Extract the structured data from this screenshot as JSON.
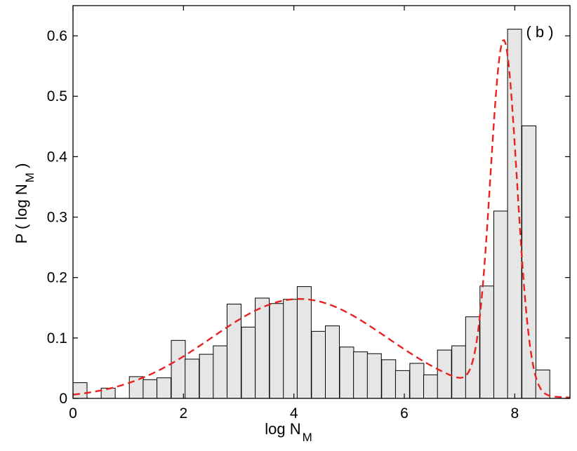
{
  "chart_data": {
    "type": "bar",
    "panel_label": "( b )",
    "xlabel": {
      "main": "log N",
      "sub": "M"
    },
    "ylabel": {
      "prefix": "P ( log N",
      "sub": "M",
      "suffix": " )"
    },
    "xlim": [
      0,
      9
    ],
    "ylim": [
      0,
      0.65
    ],
    "xticks": [
      0,
      2,
      4,
      6,
      8
    ],
    "xtick_labels": [
      "0",
      "2",
      "4",
      "6",
      "8"
    ],
    "yticks": [
      0,
      0.1,
      0.2,
      0.3,
      0.4,
      0.5,
      0.6
    ],
    "ytick_labels": [
      "0",
      "0.1",
      "0.2",
      "0.3",
      "0.4",
      "0.5",
      "0.6"
    ],
    "grid": false,
    "bin_width": 0.254,
    "bins": [
      {
        "x0": 0.0,
        "value": 0.026
      },
      {
        "x0": 0.51,
        "value": 0.017
      },
      {
        "x0": 1.02,
        "value": 0.036
      },
      {
        "x0": 1.27,
        "value": 0.031
      },
      {
        "x0": 1.52,
        "value": 0.034
      },
      {
        "x0": 1.78,
        "value": 0.096
      },
      {
        "x0": 2.03,
        "value": 0.065
      },
      {
        "x0": 2.29,
        "value": 0.073
      },
      {
        "x0": 2.54,
        "value": 0.087
      },
      {
        "x0": 2.79,
        "value": 0.156
      },
      {
        "x0": 3.05,
        "value": 0.118
      },
      {
        "x0": 3.3,
        "value": 0.166
      },
      {
        "x0": 3.56,
        "value": 0.157
      },
      {
        "x0": 3.81,
        "value": 0.164
      },
      {
        "x0": 4.06,
        "value": 0.185
      },
      {
        "x0": 4.32,
        "value": 0.111
      },
      {
        "x0": 4.57,
        "value": 0.12
      },
      {
        "x0": 4.83,
        "value": 0.085
      },
      {
        "x0": 5.08,
        "value": 0.077
      },
      {
        "x0": 5.33,
        "value": 0.074
      },
      {
        "x0": 5.59,
        "value": 0.064
      },
      {
        "x0": 5.84,
        "value": 0.046
      },
      {
        "x0": 6.1,
        "value": 0.058
      },
      {
        "x0": 6.35,
        "value": 0.039
      },
      {
        "x0": 6.6,
        "value": 0.08
      },
      {
        "x0": 6.86,
        "value": 0.087
      },
      {
        "x0": 7.11,
        "value": 0.135
      },
      {
        "x0": 7.37,
        "value": 0.186
      },
      {
        "x0": 7.62,
        "value": 0.31
      },
      {
        "x0": 7.87,
        "value": 0.611
      },
      {
        "x0": 8.13,
        "value": 0.451
      },
      {
        "x0": 8.38,
        "value": 0.047
      }
    ],
    "fit_curve": {
      "style": "dashed",
      "color": "#e8231f",
      "components": [
        {
          "weight": 0.66,
          "mean": 4.1,
          "sigma": 1.6
        },
        {
          "weight": 0.35,
          "mean": 7.8,
          "sigma": 0.24
        }
      ]
    },
    "bar_fill": "#e6e6e6",
    "bar_stroke": "#000000"
  }
}
